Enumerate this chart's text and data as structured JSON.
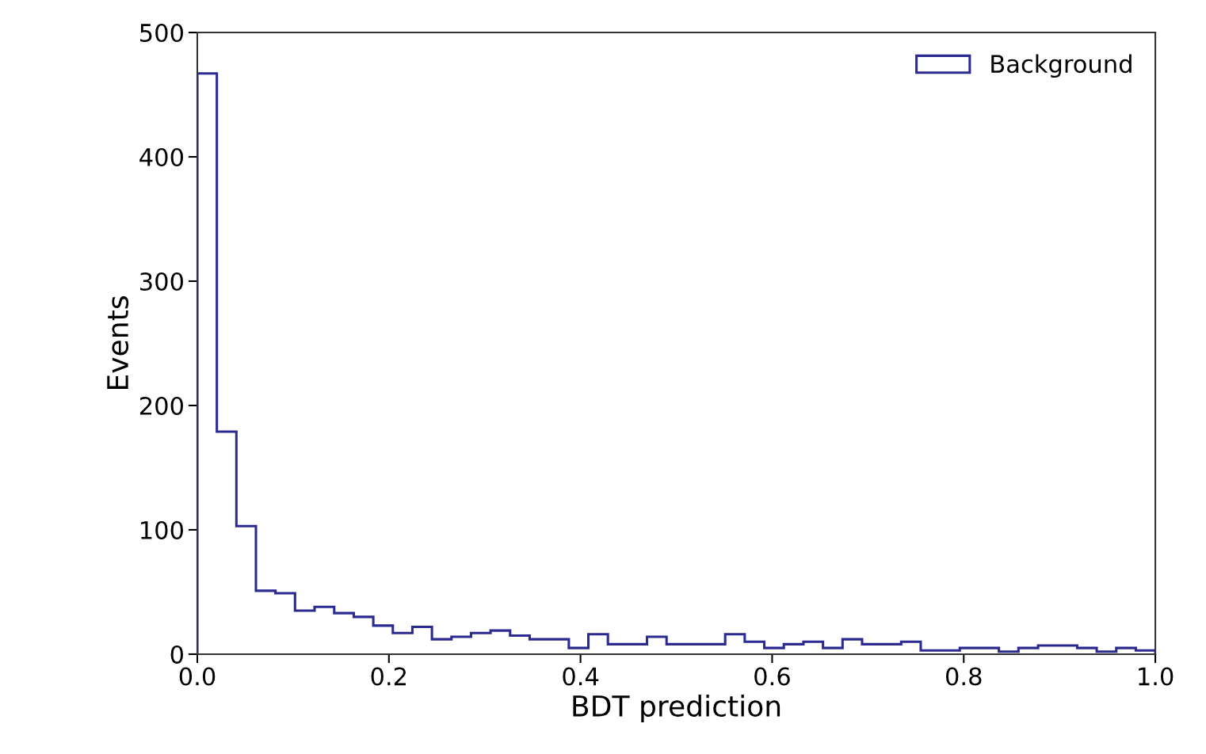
{
  "chart_data": {
    "type": "histogram",
    "xlabel": "BDT prediction",
    "ylabel": "Events",
    "bins": [
      0,
      0.0204,
      0.0408,
      0.0612,
      0.0816,
      0.102,
      0.1224,
      0.1429,
      0.1633,
      0.1837,
      0.2041,
      0.2245,
      0.2449,
      0.2653,
      0.2857,
      0.3061,
      0.3265,
      0.3469,
      0.3673,
      0.3878,
      0.4082,
      0.4286,
      0.449,
      0.4694,
      0.4898,
      0.5102,
      0.5306,
      0.551,
      0.5714,
      0.5918,
      0.6122,
      0.6327,
      0.6531,
      0.6735,
      0.6939,
      0.7143,
      0.7347,
      0.7551,
      0.7755,
      0.7959,
      0.8163,
      0.8367,
      0.8571,
      0.8776,
      0.898,
      0.9184,
      0.9388,
      0.9592,
      0.9796,
      1.0
    ],
    "series": [
      {
        "name": "Background",
        "color": "#2a2a90",
        "values": [
          467,
          179,
          103,
          51,
          49,
          35,
          38,
          33,
          30,
          23,
          17,
          22,
          12,
          14,
          17,
          19,
          15,
          12,
          12,
          5,
          16,
          8,
          8,
          14,
          8,
          8,
          8,
          16,
          10,
          5,
          8,
          10,
          5,
          12,
          8,
          8,
          10,
          3,
          3,
          5,
          5,
          2,
          5,
          7,
          7,
          5,
          2,
          5,
          3
        ]
      }
    ],
    "xlim": [
      0,
      1.0
    ],
    "xticks": [
      {
        "value": 0,
        "label": "0.0"
      },
      0.2,
      0.4,
      0.6,
      0.8,
      {
        "value": 1.0,
        "label": "1.0"
      }
    ],
    "ylim": [
      0,
      500
    ],
    "yticks": [
      0,
      100,
      200,
      300,
      400,
      500
    ],
    "grid": false,
    "legend": "top right"
  }
}
